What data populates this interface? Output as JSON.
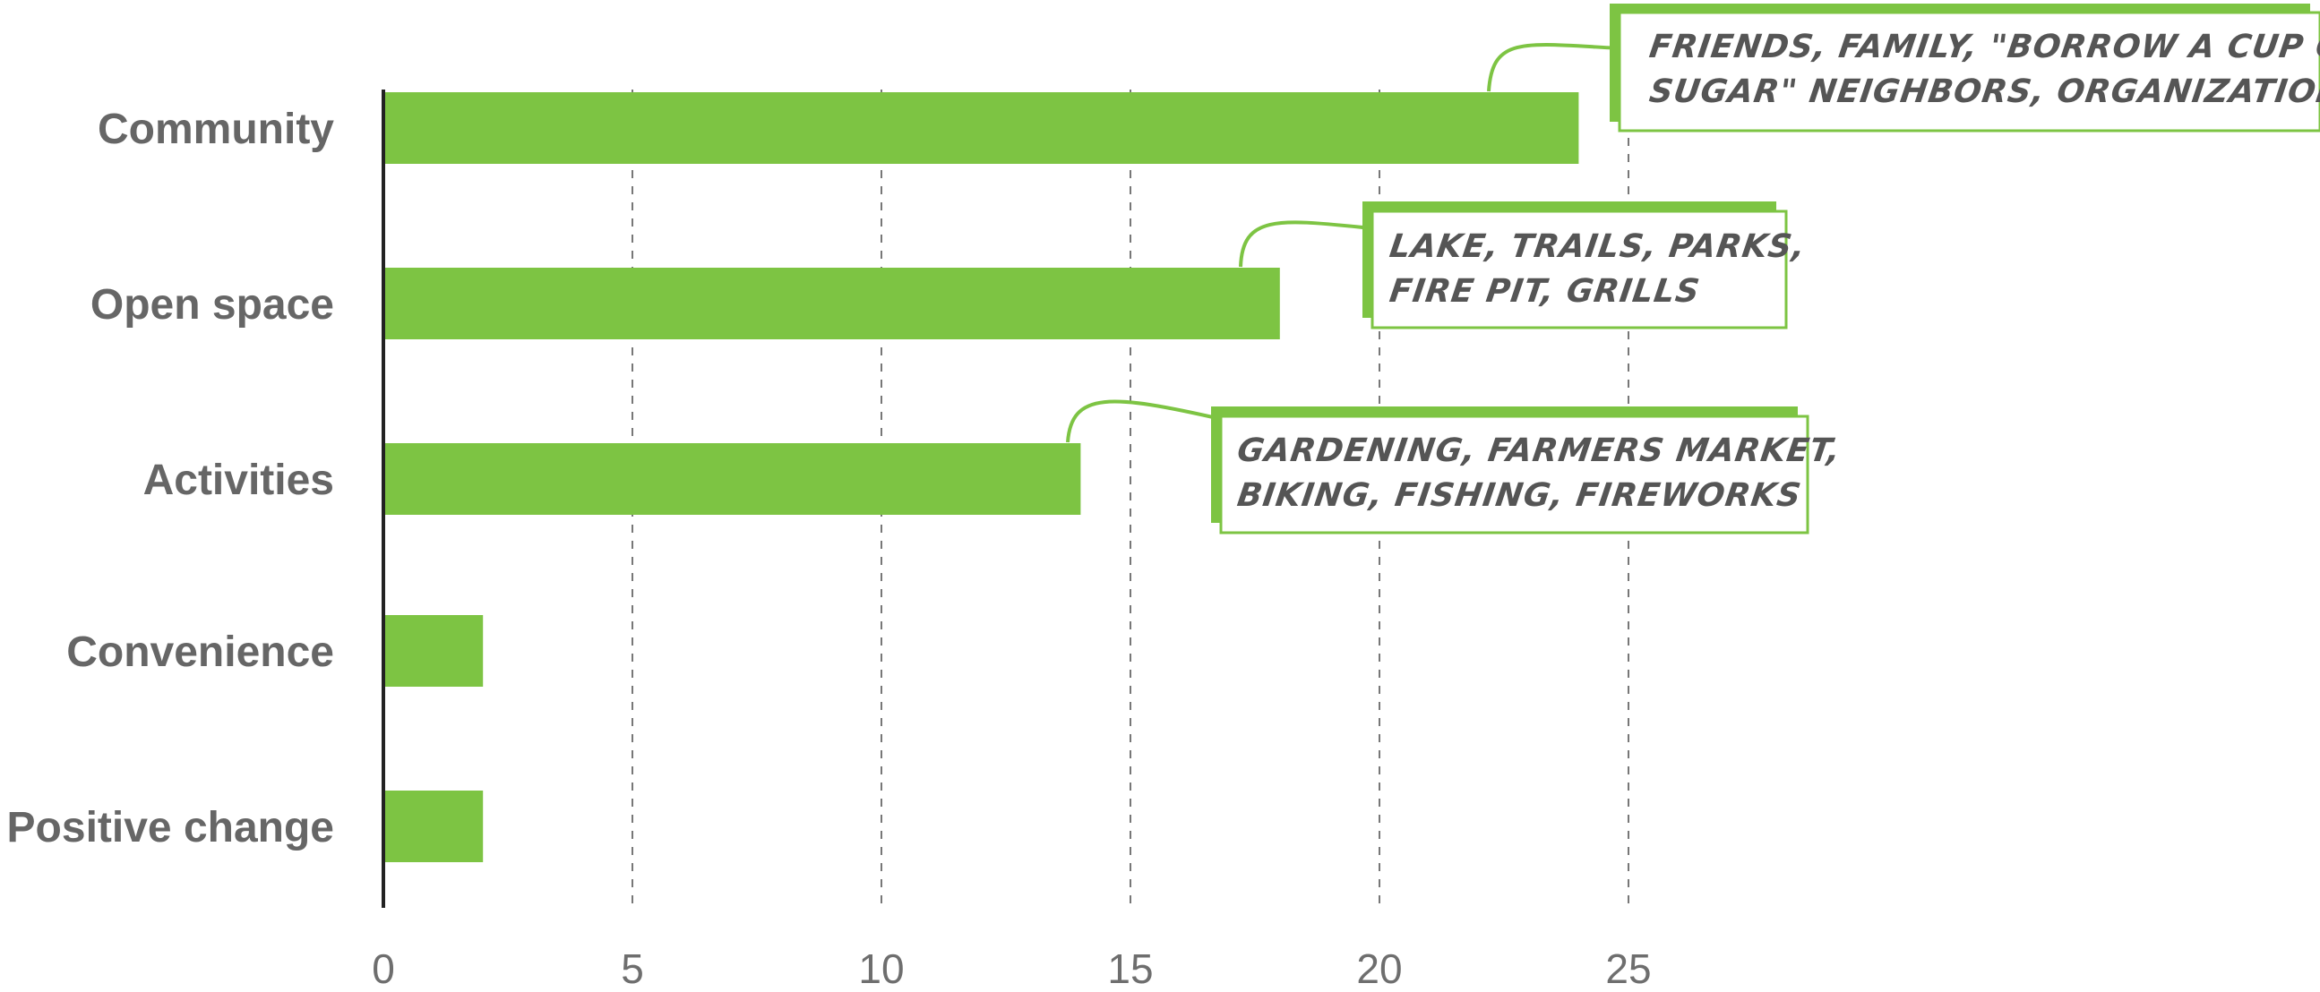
{
  "chart_data": {
    "type": "bar",
    "orientation": "horizontal",
    "categories": [
      "Community",
      "Open space",
      "Activities",
      "Convenience",
      "Positive change"
    ],
    "values": [
      24,
      18,
      14,
      2,
      2
    ],
    "xlim": [
      0,
      25
    ],
    "x_ticks": [
      "0",
      "5",
      "10",
      "15",
      "20",
      "25"
    ],
    "grid": "vertical dashed",
    "bar_color": "#7dc443",
    "title": "",
    "xlabel": "",
    "ylabel": "",
    "annotations": [
      {
        "category": "Community",
        "lines": [
          "FRIENDS, FAMILY, \"BORROW A CUP OF",
          "SUGAR\" NEIGHBORS, ORGANIZATIONS"
        ]
      },
      {
        "category": "Open space",
        "lines": [
          "LAKE, TRAILS, PARKS,",
          "FIRE PIT, GRILLS"
        ]
      },
      {
        "category": "Activities",
        "lines": [
          "GARDENING, FARMERS MARKET,",
          "BIKING, FISHING, FIREWORKS"
        ]
      }
    ]
  }
}
